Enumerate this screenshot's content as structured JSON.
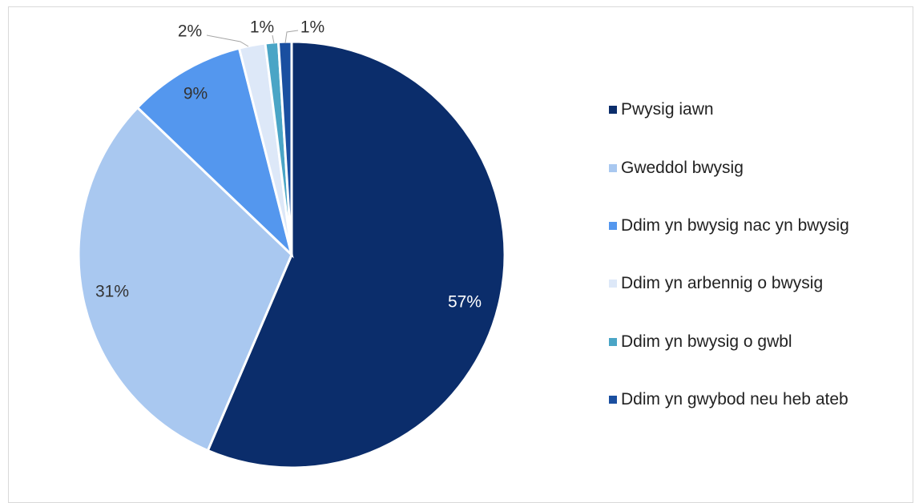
{
  "chart_data": {
    "type": "pie",
    "categories": [
      "Pwysig iawn",
      "Gweddol bwysig",
      "Ddim yn bwysig nac yn bwysig",
      "Ddim yn arbennig o bwysig",
      "Ddim yn bwysig o gwbl",
      "Ddim yn gwybod neu heb ateb"
    ],
    "values": [
      57,
      31,
      9,
      2,
      1,
      1
    ],
    "value_labels": [
      "57%",
      "31%",
      "9%",
      "2%",
      "1%",
      "1%"
    ],
    "colors": [
      "#0b2d6b",
      "#a9c8f0",
      "#5497ee",
      "#dde8f8",
      "#4aa5c6",
      "#1a4fa0"
    ],
    "legend": "right"
  }
}
